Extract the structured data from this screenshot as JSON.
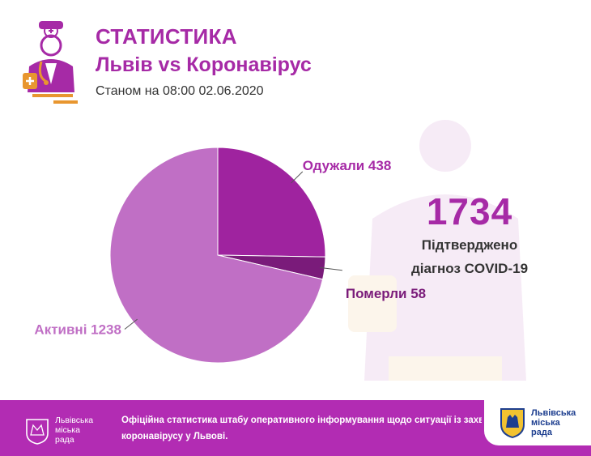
{
  "header": {
    "title": "СТАТИСТИКА",
    "subtitle": "Львів vs Коронавірус",
    "as_of_label": "Станом на",
    "as_of_datetime": "08:00 02.06.2020",
    "icon": "doctor-icon"
  },
  "summary": {
    "total": "1734",
    "caption_line1": "Підтверджено",
    "caption_line2": "діагноз COVID-19"
  },
  "chart_data": {
    "type": "pie",
    "title": "",
    "slices": [
      {
        "label": "Одужали",
        "value": 438,
        "color": "#9f239f"
      },
      {
        "label": "Померли",
        "value": 58,
        "color": "#7a1b7a"
      },
      {
        "label": "Активні",
        "value": 1238,
        "color": "#c06fc5"
      }
    ],
    "start_angle": "12 o'clock",
    "direction": "clockwise",
    "legend": "none",
    "data_labels": "outside"
  },
  "footer": {
    "text_line1": "Офіційна статистика штабу оперативного інформування щодо ситуації із захворюванням",
    "text_line2": "коронавірусу у Львові.",
    "logo_left": {
      "line1": "Львівська",
      "line2": "міська",
      "line3": "рада",
      "icon": "city-crest-outline-icon"
    },
    "logo_right": {
      "line1": "Львівська",
      "line2": "міська",
      "line3": "рада",
      "icon": "city-crest-icon"
    },
    "background": "#b22cb3"
  },
  "colors": {
    "accent": "#a62aa6",
    "text": "#333333"
  }
}
